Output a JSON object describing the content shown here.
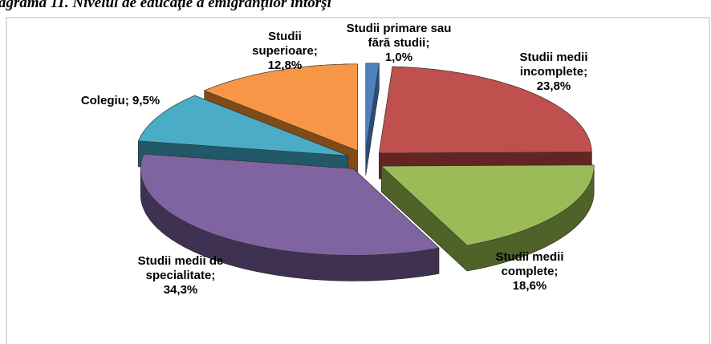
{
  "chart_data": {
    "type": "pie",
    "title": "agrama 11. Nivelul de educaţie a emigranţilor întorşi",
    "categories": [
      "Studii primare sau fără studii",
      "Studii medii incomplete",
      "Studii medii complete",
      "Studii medii de specialitate",
      "Colegiu",
      "Studii superioare"
    ],
    "values": [
      1.0,
      23.8,
      18.6,
      34.3,
      9.5,
      12.8
    ],
    "value_labels": [
      "1,0%",
      "23,8%",
      "18,6%",
      "34,3%",
      "9,5%",
      "12,8%"
    ],
    "label_separator": ";",
    "colors": [
      "#4f81bd",
      "#c0504d",
      "#9bbb59",
      "#8064a2",
      "#4bacc6",
      "#f79646"
    ],
    "side_colors": [
      "#2c4d75",
      "#632523",
      "#4f6228",
      "#3f3151",
      "#215968",
      "#7f4b17"
    ]
  }
}
